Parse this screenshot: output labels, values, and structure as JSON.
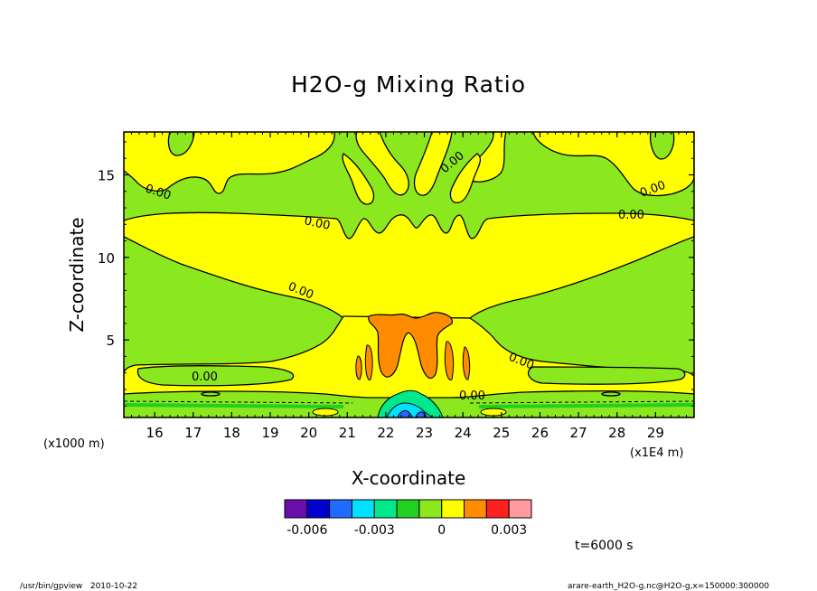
{
  "chart_data": {
    "type": "heatmap",
    "title": "H2O-g Mixing Ratio",
    "xlabel": "X-coordinate",
    "ylabel": "Z-coordinate",
    "x_unit_label": "(x1E4 m)",
    "y_unit_label": "(x1000 m)",
    "xlim": [
      15.2,
      30.0
    ],
    "ylim": [
      0.3,
      17.6
    ],
    "x_ticks": [
      "16",
      "17",
      "18",
      "19",
      "20",
      "21",
      "22",
      "23",
      "24",
      "25",
      "26",
      "27",
      "28",
      "29"
    ],
    "x_tick_values": [
      16,
      17,
      18,
      19,
      20,
      21,
      22,
      23,
      24,
      25,
      26,
      27,
      28,
      29
    ],
    "y_ticks": [
      "5",
      "10",
      "15"
    ],
    "y_tick_values": [
      5,
      10,
      15
    ],
    "contour_labels": [
      "0.00",
      "0.00",
      "0.00",
      "0.00",
      "0.00",
      "0.00",
      "0.00",
      "0.00",
      "0.00",
      "0.00"
    ],
    "colorbar": {
      "colors": [
        "#6a0dad",
        "#0000d0",
        "#1e6cff",
        "#00e0ff",
        "#00e88c",
        "#22d022",
        "#8ce81e",
        "#ffff00",
        "#ff8c00",
        "#ff2020",
        "#ff9aa0"
      ],
      "tick_labels": [
        "-0.006",
        "-0.003",
        "0",
        "0.003"
      ]
    },
    "time_label": "t=6000 s",
    "footer_left": "/usr/bin/gpview   2010-10-22",
    "footer_right": "arare-earth_H2O-g.nc@H2O-g,x=150000:300000"
  }
}
